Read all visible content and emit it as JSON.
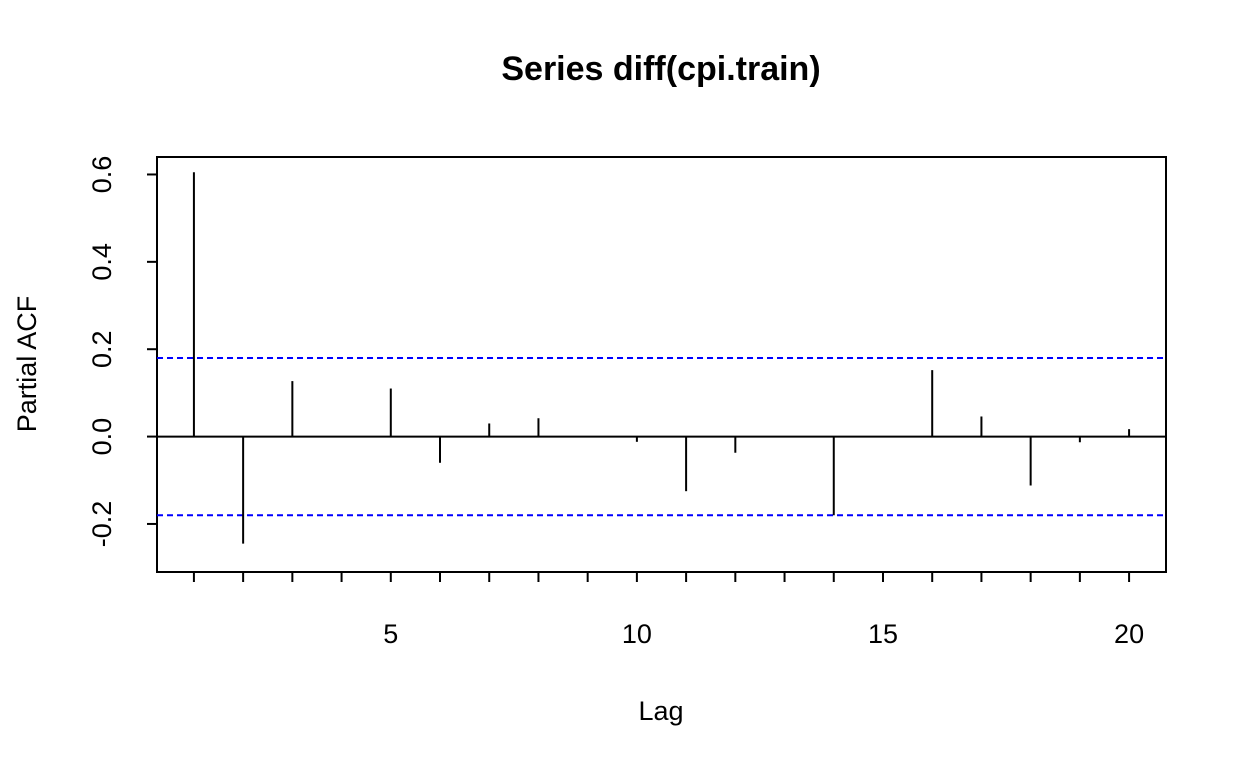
{
  "chart_data": {
    "type": "bar",
    "subtype": "pacf",
    "title": "Series  diff(cpi.train)",
    "xlabel": "Lag",
    "ylabel": "Partial ACF",
    "xlim": [
      0.25,
      20.75
    ],
    "ylim": [
      -0.31,
      0.64
    ],
    "x_ticks": [
      5,
      10,
      15,
      20
    ],
    "x_minor_ticks": [
      1,
      2,
      3,
      4,
      6,
      7,
      8,
      9,
      11,
      12,
      13,
      14,
      16,
      17,
      18,
      19
    ],
    "y_ticks": [
      -0.2,
      0.0,
      0.2,
      0.4,
      0.6
    ],
    "y_tick_labels": [
      "-0.2",
      "0.0",
      "0.2",
      "0.4",
      "0.6"
    ],
    "x_tick_labels": [
      "5",
      "10",
      "15",
      "20"
    ],
    "series": [
      {
        "lags": [
          1,
          2,
          3,
          4,
          5,
          6,
          7,
          8,
          9,
          10,
          11,
          12,
          13,
          14,
          15,
          16,
          17,
          18,
          19,
          20
        ],
        "values": [
          0.605,
          -0.245,
          0.127,
          0.0,
          0.11,
          -0.06,
          0.03,
          0.042,
          0.0,
          -0.012,
          -0.125,
          -0.037,
          0.0,
          -0.18,
          -0.002,
          0.152,
          0.046,
          -0.112,
          -0.013,
          0.017
        ]
      }
    ],
    "confidence_bound": 0.18,
    "colors": {
      "bars": "#000000",
      "confidence": "#0000ff",
      "zero_line": "#000000",
      "background": "#ffffff"
    },
    "grid": false,
    "legend": "none"
  }
}
